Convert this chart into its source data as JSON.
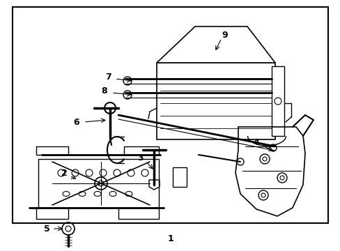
{
  "background_color": "#ffffff",
  "line_color": "#000000",
  "text_color": "#000000",
  "figsize": [
    4.89,
    3.6
  ],
  "dpi": 100
}
